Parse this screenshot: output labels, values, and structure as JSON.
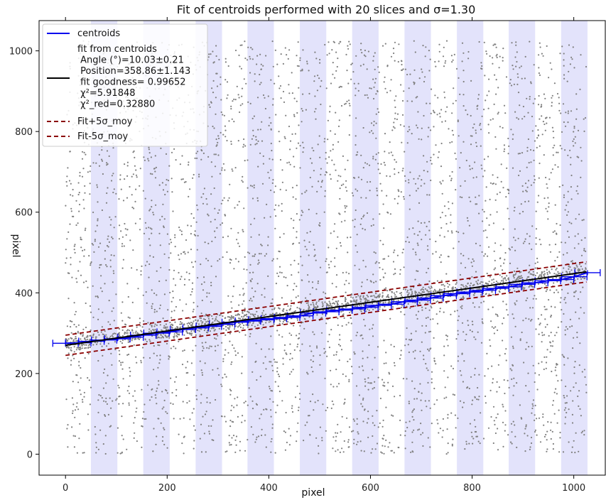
{
  "chart_data": {
    "type": "scatter",
    "title": "Fit of centroids performed with 20 slices and σ=1.30",
    "xlabel": "pixel",
    "ylabel": "pixel",
    "xlim": [
      -52,
      1062
    ],
    "ylim": [
      -52,
      1075
    ],
    "xticks": [
      0,
      200,
      400,
      600,
      800,
      1000
    ],
    "yticks": [
      0,
      200,
      400,
      600,
      800,
      1000
    ],
    "grid": false,
    "legend_position": "top-left",
    "colors": {
      "centroids": "#0000ee",
      "fit": "#000000",
      "band": "#8b0000",
      "background_points": "#808080",
      "slice_shade": "#e3e3fb"
    },
    "slice_bands": [
      [
        50,
        102
      ],
      [
        153,
        205
      ],
      [
        256,
        308
      ],
      [
        358,
        410
      ],
      [
        461,
        513
      ],
      [
        564,
        616
      ],
      [
        667,
        719
      ],
      [
        770,
        822
      ],
      [
        872,
        924
      ],
      [
        975,
        1027
      ]
    ],
    "centroids": {
      "x": [
        0,
        25,
        51,
        76,
        102,
        128,
        153,
        179,
        205,
        231,
        256,
        282,
        308,
        333,
        359,
        385,
        410,
        436,
        462,
        487,
        513,
        539,
        564,
        590,
        616,
        641,
        667,
        693,
        718,
        744,
        770,
        795,
        821,
        847,
        872,
        898,
        924,
        949,
        975,
        1001,
        1027
      ],
      "y": [
        275,
        276,
        280,
        283,
        286,
        290,
        295,
        300,
        303,
        309,
        313,
        317,
        322,
        327,
        330,
        333,
        336,
        339,
        343,
        350,
        353,
        357,
        360,
        364,
        369,
        372,
        378,
        382,
        387,
        393,
        398,
        402,
        406,
        411,
        415,
        421,
        425,
        430,
        433,
        440,
        450
      ],
      "xerr": 25,
      "yerr": 6
    },
    "fit": {
      "x_range": [
        0,
        1025
      ],
      "y_start": 270,
      "y_end": 452,
      "band_offset": 25
    },
    "series": [
      {
        "name": "centroids"
      },
      {
        "name": "fit from centroids\n Angle (°)=10.03±0.21\n Position=358.86±1.143\n fit goodness= 0.99652\n χ²=5.91848\n χ²_red=0.32880"
      },
      {
        "name": "Fit+5σ_moy"
      },
      {
        "name": "Fit-5σ_moy"
      }
    ]
  }
}
